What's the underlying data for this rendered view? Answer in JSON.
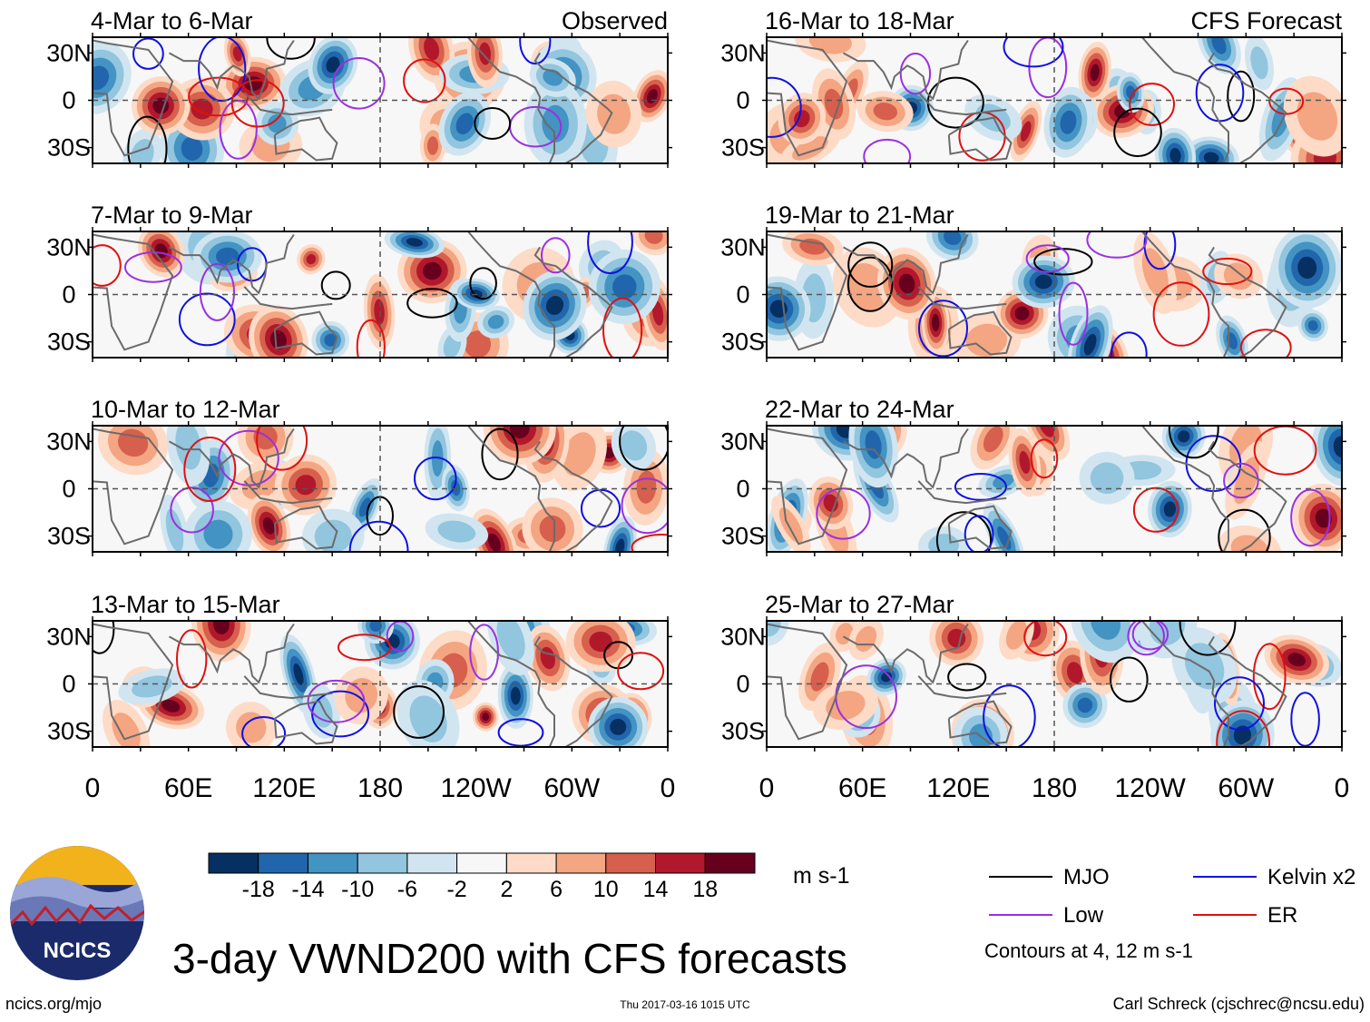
{
  "chart_data": {
    "type": "heatmap",
    "variable": "VWND200",
    "title": "3-day VWND200 with CFS forecasts",
    "units": "m s-1",
    "lat_ticks": [
      "30N",
      "0",
      "30S"
    ],
    "lon_ticks": [
      "0",
      "60E",
      "120E",
      "180",
      "120W",
      "60W",
      "0"
    ],
    "lat_range": [
      -40,
      40
    ],
    "lon_range": [
      0,
      360
    ],
    "colorbar": {
      "levels": [
        "-18",
        "-14",
        "-10",
        "-6",
        "-2",
        "2",
        "6",
        "10",
        "14",
        "18"
      ],
      "colors": [
        "#053061",
        "#2166ac",
        "#4393c3",
        "#92c5de",
        "#d1e5f0",
        "#f7f7f7",
        "#fddbc7",
        "#f4a582",
        "#d6604d",
        "#b2182b",
        "#67001f"
      ]
    },
    "panels": [
      {
        "label": "4-Mar to 6-Mar",
        "tag": "Observed",
        "column": "left",
        "row": 0
      },
      {
        "label": "7-Mar to 9-Mar",
        "tag": "",
        "column": "left",
        "row": 1
      },
      {
        "label": "10-Mar to 12-Mar",
        "tag": "",
        "column": "left",
        "row": 2
      },
      {
        "label": "13-Mar to 15-Mar",
        "tag": "",
        "column": "left",
        "row": 3
      },
      {
        "label": "16-Mar to 18-Mar",
        "tag": "CFS Forecast",
        "column": "right",
        "row": 0
      },
      {
        "label": "19-Mar to 21-Mar",
        "tag": "",
        "column": "right",
        "row": 1
      },
      {
        "label": "22-Mar to 24-Mar",
        "tag": "",
        "column": "right",
        "row": 2
      },
      {
        "label": "25-Mar to 27-Mar",
        "tag": "",
        "column": "right",
        "row": 3
      }
    ],
    "legend": [
      {
        "name": "MJO",
        "color": "#000000"
      },
      {
        "name": "Kelvin x2",
        "color": "#1010e0"
      },
      {
        "name": "Low",
        "color": "#9a30e0"
      },
      {
        "name": "ER",
        "color": "#e01010"
      }
    ],
    "contour_note": "Contours at 4, 12 m s-1"
  },
  "footer": {
    "logo_text": "NCICS",
    "site": "ncics.org/mjo",
    "timestamp": "Thu 2017-03-16 1015 UTC",
    "author": "Carl Schreck (cjschrec@ncsu.edu)"
  }
}
